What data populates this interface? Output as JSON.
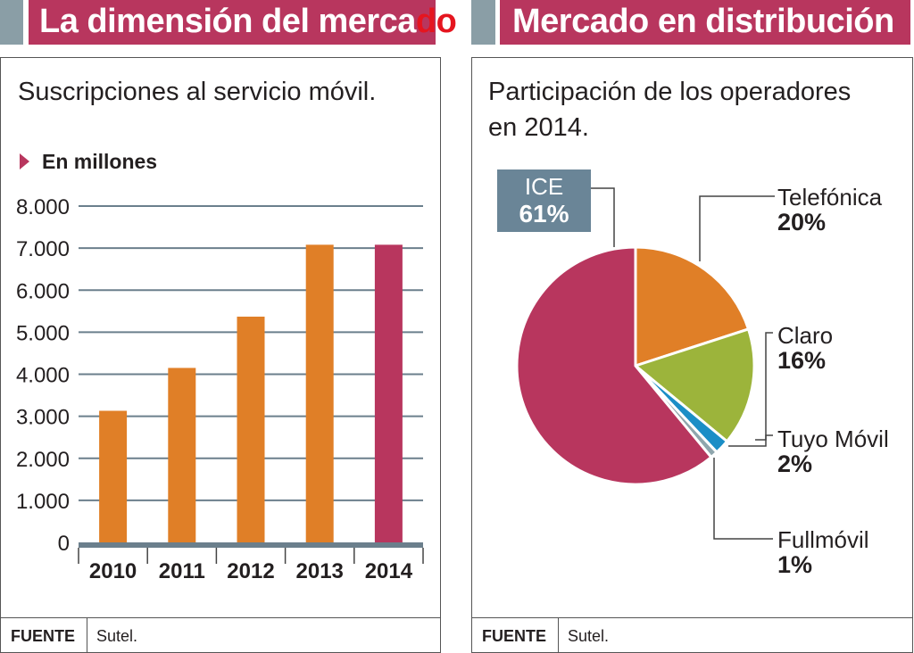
{
  "left_panel": {
    "title": "La dimensión del merca",
    "title_overflow": "do",
    "subtitle": "Suscripciones al servicio móvil.",
    "unit_label": "En millones",
    "footer": {
      "label": "FUENTE",
      "source": "Sutel."
    }
  },
  "right_panel": {
    "title": "Mercado en distribución",
    "subtitle_line1": "Participación de los operadores",
    "subtitle_line2": "en 2014.",
    "footer": {
      "label": "FUENTE",
      "source": "Sutel."
    }
  },
  "colors": {
    "brand_magenta": "#b8365e",
    "accent_gray": "#8a9ea6",
    "bar_orange": "#e07f27",
    "highlight_bar": "#b8365e",
    "axis": "#6b7f8c"
  },
  "chart_data": [
    {
      "type": "bar",
      "title": "Suscripciones al servicio móvil.",
      "ylabel": "En millones",
      "xlabel": "",
      "categories": [
        "2010",
        "2011",
        "2012",
        "2013",
        "2014"
      ],
      "values": [
        3130,
        4150,
        5370,
        7080,
        7080
      ],
      "bar_colors": [
        "#e07f27",
        "#e07f27",
        "#e07f27",
        "#e07f27",
        "#b8365e"
      ],
      "ylim": [
        0,
        8000
      ],
      "yticks": [
        0,
        1000,
        2000,
        3000,
        4000,
        5000,
        6000,
        7000,
        8000
      ],
      "ytick_labels": [
        "0",
        "1.000",
        "2.000",
        "3.000",
        "4.000",
        "5.000",
        "6.000",
        "7.000",
        "8.000"
      ],
      "grid": true,
      "source": "Sutel."
    },
    {
      "type": "pie",
      "title": "Participación de los operadores en 2014.",
      "slices": [
        {
          "name": "Telefónica",
          "label": "20%",
          "value": 20,
          "color": "#e07f27"
        },
        {
          "name": "Claro",
          "label": "16%",
          "value": 16,
          "color": "#9cb43b"
        },
        {
          "name": "Tuyo Móvil",
          "label": "2%",
          "value": 2,
          "color": "#1b8ec6"
        },
        {
          "name": "Fullmóvil",
          "label": "1%",
          "value": 1,
          "color": "#8fa6ad"
        },
        {
          "name": "ICE",
          "label": "61%",
          "value": 61,
          "color": "#b8365e"
        }
      ],
      "start": "12 o'clock, clockwise",
      "source": "Sutel."
    }
  ]
}
